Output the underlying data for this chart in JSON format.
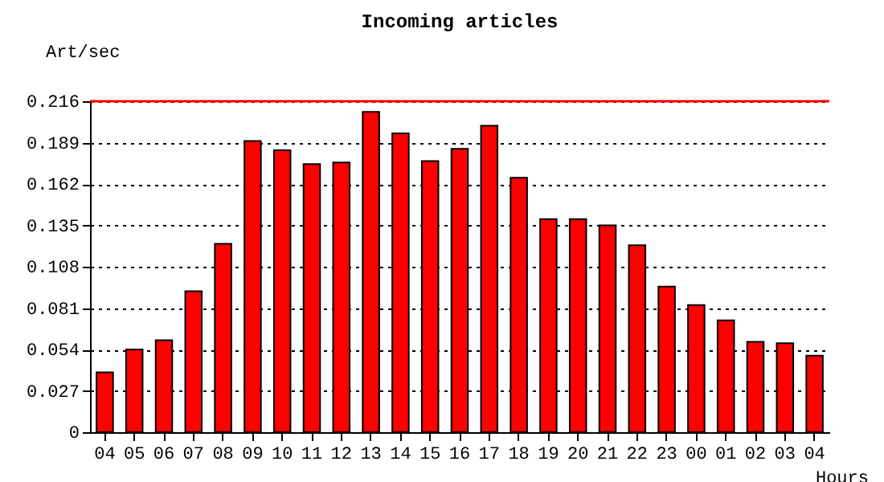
{
  "chart_data": {
    "type": "bar",
    "title": "Incoming articles",
    "xlabel": "Hours",
    "ylabel": "Art/sec",
    "categories": [
      "04",
      "05",
      "06",
      "07",
      "08",
      "09",
      "10",
      "11",
      "12",
      "13",
      "14",
      "15",
      "16",
      "17",
      "18",
      "19",
      "20",
      "21",
      "22",
      "23",
      "00",
      "01",
      "02",
      "03",
      "04"
    ],
    "values": [
      0.039,
      0.054,
      0.06,
      0.092,
      0.123,
      0.19,
      0.184,
      0.175,
      0.176,
      0.209,
      0.195,
      0.177,
      0.185,
      0.2,
      0.166,
      0.139,
      0.139,
      0.135,
      0.122,
      0.095,
      0.083,
      0.073,
      0.059,
      0.058,
      0.05
    ],
    "color": "#ff0000",
    "ylim": [
      0,
      0.216
    ],
    "yticks": [
      0,
      0.027,
      0.054,
      0.081,
      0.108,
      0.135,
      0.162,
      0.189,
      0.216
    ],
    "ref_lines": [
      {
        "axis": "y",
        "value": 0.216,
        "color": "#ff0000"
      }
    ],
    "grid": "y",
    "line_style": "dotted"
  }
}
